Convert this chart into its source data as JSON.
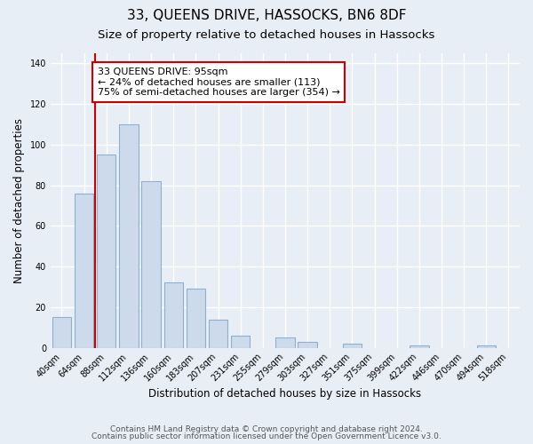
{
  "title": "33, QUEENS DRIVE, HASSOCKS, BN6 8DF",
  "subtitle": "Size of property relative to detached houses in Hassocks",
  "xlabel": "Distribution of detached houses by size in Hassocks",
  "ylabel": "Number of detached properties",
  "bar_labels": [
    "40sqm",
    "64sqm",
    "88sqm",
    "112sqm",
    "136sqm",
    "160sqm",
    "183sqm",
    "207sqm",
    "231sqm",
    "255sqm",
    "279sqm",
    "303sqm",
    "327sqm",
    "351sqm",
    "375sqm",
    "399sqm",
    "422sqm",
    "446sqm",
    "470sqm",
    "494sqm",
    "518sqm"
  ],
  "bar_values": [
    15,
    76,
    95,
    110,
    82,
    32,
    29,
    14,
    6,
    0,
    5,
    3,
    0,
    2,
    0,
    0,
    1,
    0,
    0,
    1,
    0
  ],
  "bar_color": "#ccdaeb",
  "bar_edge_color": "#8fb0cc",
  "vline_bar_index": 2,
  "vline_color": "#cc0000",
  "annotation_text": "33 QUEENS DRIVE: 95sqm\n← 24% of detached houses are smaller (113)\n75% of semi-detached houses are larger (354) →",
  "annotation_box_color": "#ffffff",
  "annotation_box_edge": "#cc0000",
  "ylim": [
    0,
    145
  ],
  "yticks": [
    0,
    20,
    40,
    60,
    80,
    100,
    120,
    140
  ],
  "footer_line1": "Contains HM Land Registry data © Crown copyright and database right 2024.",
  "footer_line2": "Contains public sector information licensed under the Open Government Licence v3.0.",
  "background_color": "#e8eef5",
  "grid_color": "#ffffff",
  "title_fontsize": 11,
  "subtitle_fontsize": 9.5,
  "axis_label_fontsize": 8.5,
  "tick_fontsize": 7,
  "annotation_fontsize": 8,
  "footer_fontsize": 6.5
}
